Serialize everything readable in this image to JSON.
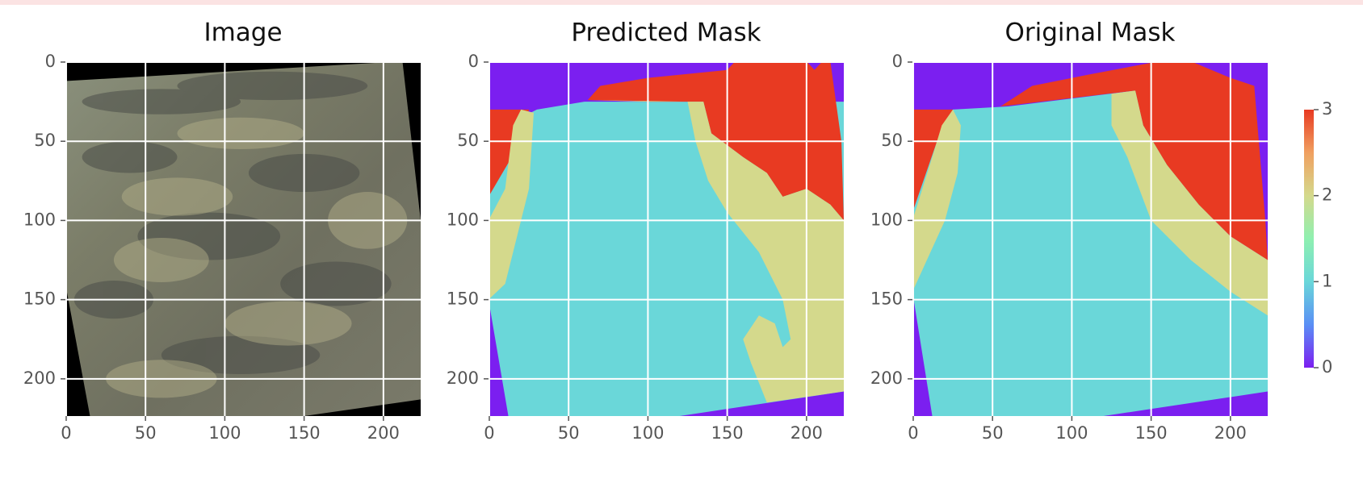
{
  "chart_data": [
    {
      "type": "image",
      "title": "Image",
      "xlim": [
        -0.5,
        223.5
      ],
      "ylim": [
        223.5,
        -0.5
      ],
      "xticks": [
        0,
        50,
        100,
        150,
        200
      ],
      "yticks": [
        0,
        50,
        100,
        150,
        200
      ],
      "grid": true
    },
    {
      "type": "image",
      "title": "Predicted Mask",
      "xlim": [
        -0.5,
        223.5
      ],
      "ylim": [
        223.5,
        -0.5
      ],
      "xticks": [
        0,
        50,
        100,
        150,
        200
      ],
      "yticks": [
        0,
        50,
        100,
        150,
        200
      ],
      "grid": true
    },
    {
      "type": "image",
      "title": "Original Mask",
      "xlim": [
        -0.5,
        223.5
      ],
      "ylim": [
        223.5,
        -0.5
      ],
      "xticks": [
        0,
        50,
        100,
        150,
        200
      ],
      "yticks": [
        0,
        50,
        100,
        150,
        200
      ],
      "grid": true
    },
    {
      "type": "colorbar",
      "ylim": [
        0,
        3
      ],
      "yticks": [
        0,
        1,
        2,
        3
      ],
      "colors": [
        "#7b1ff0",
        "#5a8ff5",
        "#6ad7d9",
        "#8ff0b0",
        "#d4d98c",
        "#f0a060",
        "#e83a22"
      ]
    }
  ]
}
